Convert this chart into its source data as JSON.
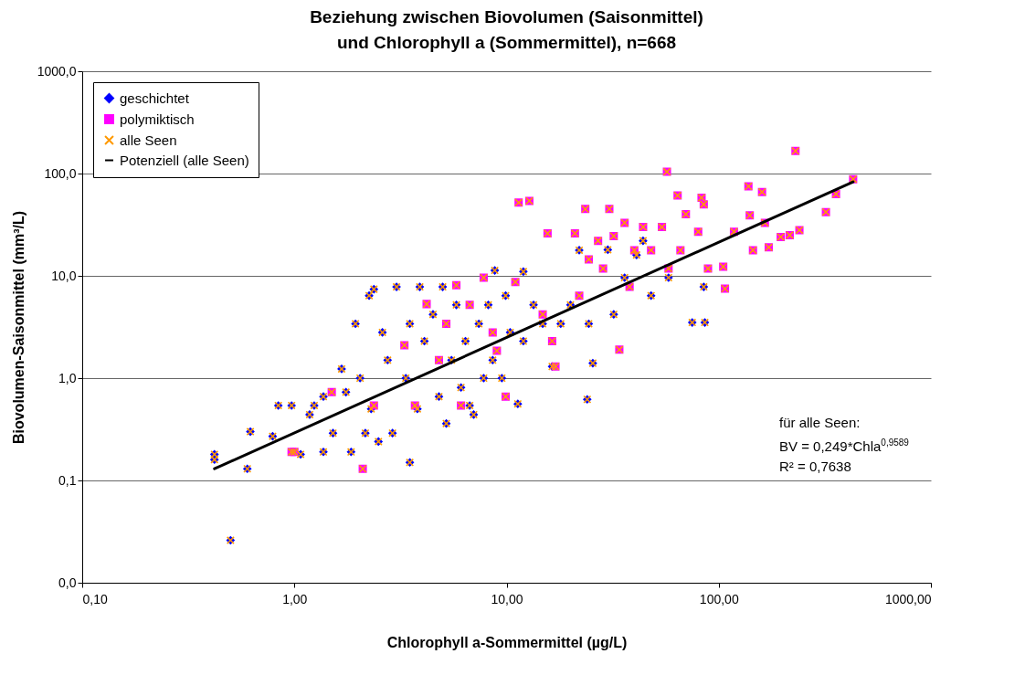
{
  "chart_data": {
    "type": "scatter",
    "title": "Beziehung zwischen Biovolumen (Saisonmittel)\nund Chlorophyll a (Sommermittel), n=668",
    "xlabel": "Chlorophyll a-Sommermittel (µg/L)",
    "ylabel": "Biovolumen-Saisonmittel (mm³/L)",
    "log": "xy",
    "grid": "y",
    "legend": "top left",
    "xlim": [
      0.1,
      1000
    ],
    "ylim": [
      0.01,
      1000
    ],
    "xticks": [
      {
        "value": 0.1,
        "label": "0,10"
      },
      {
        "value": 1,
        "label": "1,00"
      },
      {
        "value": 10,
        "label": "10,00"
      },
      {
        "value": 100,
        "label": "100,00"
      },
      {
        "value": 1000,
        "label": "1000,00"
      }
    ],
    "yticks": [
      {
        "value": 0.01,
        "label": "0,0"
      },
      {
        "value": 0.1,
        "label": "0,1"
      },
      {
        "value": 1,
        "label": "1,0"
      },
      {
        "value": 10,
        "label": "10,0"
      },
      {
        "value": 100,
        "label": "100,0"
      },
      {
        "value": 1000,
        "label": "1000,0"
      }
    ],
    "annotations": [
      "für alle Seen:",
      "BV = 0,249*Chla$^{0,9589}$",
      "R² = 0,7638"
    ],
    "series": [
      {
        "name": "geschichtet",
        "color": "#0000ff",
        "marker": "diamond",
        "x": [
          0.42,
          0.42,
          0.5,
          0.6,
          0.62,
          0.79,
          0.84,
          0.97,
          1.07,
          1.18,
          1.24,
          1.37,
          1.37,
          1.52,
          1.67,
          1.75,
          1.85,
          1.94,
          2.04,
          2.16,
          2.25,
          2.37,
          2.3,
          2.49,
          2.6,
          2.75,
          2.9,
          3.5,
          3.03,
          3.35,
          3.5,
          3.8,
          3.9,
          4.1,
          4.5,
          4.8,
          5.0,
          5.2,
          5.5,
          5.8,
          6.1,
          6.4,
          6.7,
          7.0,
          7.4,
          7.8,
          8.2,
          8.6,
          8.8,
          9.5,
          9.9,
          10.4,
          11.3,
          12,
          12,
          13.4,
          14.8,
          16.4,
          18,
          20,
          22,
          24.4,
          24,
          25.5,
          30,
          32,
          36,
          41,
          44,
          48,
          58,
          75,
          86,
          85
        ],
        "values": [
          0.18,
          0.16,
          0.026,
          0.13,
          0.3,
          0.27,
          0.54,
          0.54,
          0.18,
          0.44,
          0.54,
          0.19,
          0.66,
          0.29,
          1.23,
          0.73,
          0.19,
          3.4,
          1.0,
          0.29,
          6.4,
          7.4,
          0.5,
          0.24,
          2.8,
          1.5,
          0.29,
          0.15,
          7.8,
          1.0,
          3.4,
          0.5,
          7.8,
          2.3,
          4.2,
          0.66,
          7.8,
          0.36,
          1.5,
          5.2,
          0.81,
          2.3,
          0.54,
          0.44,
          3.4,
          1.0,
          5.2,
          1.5,
          11.3,
          1.0,
          6.4,
          2.8,
          0.56,
          11,
          2.3,
          5.2,
          3.4,
          1.3,
          3.4,
          5.2,
          17.8,
          3.4,
          0.62,
          1.4,
          18,
          4.2,
          9.6,
          16,
          22,
          6.4,
          9.6,
          3.5,
          3.5,
          7.8
        ]
      },
      {
        "name": "polymiktisch",
        "color": "#ff00ff",
        "marker": "square",
        "x": [
          0.97,
          1.0,
          2.1,
          4.2,
          3.3,
          1.5,
          2.37,
          3.7,
          4.8,
          5.2,
          5.8,
          6.1,
          6.7,
          7.8,
          8.6,
          9,
          9.9,
          11,
          11.4,
          12.8,
          14.8,
          15.6,
          16.4,
          17,
          21,
          22,
          23.5,
          24.4,
          27,
          28.5,
          30.5,
          32,
          34,
          36,
          38,
          40,
          44,
          48,
          54,
          57,
          58,
          64,
          66,
          70,
          80,
          83,
          85,
          89,
          105,
          107,
          118,
          138,
          140,
          145,
          160,
          165,
          172,
          196,
          216,
          230,
          240,
          320,
          357,
          430
        ],
        "values": [
          0.19,
          0.19,
          0.13,
          5.3,
          2.1,
          0.73,
          0.54,
          0.54,
          1.5,
          3.4,
          8.1,
          0.54,
          5.2,
          9.6,
          2.8,
          1.85,
          0.66,
          8.7,
          52,
          54,
          4.2,
          26,
          2.3,
          1.3,
          26,
          6.4,
          45,
          14.5,
          22,
          11.8,
          45,
          24.5,
          1.9,
          33,
          7.8,
          17.8,
          30,
          17.8,
          30,
          104,
          11.8,
          61,
          17.8,
          40,
          27,
          58,
          50,
          11.8,
          12.3,
          7.5,
          27,
          75,
          39,
          17.8,
          66,
          33,
          19,
          24,
          25,
          166,
          28,
          42,
          63,
          88
        ]
      },
      {
        "name": "alle Seen",
        "color": "#ff9900",
        "marker": "cross",
        "x": [
          0.42,
          0.42,
          0.5,
          0.6,
          0.62,
          0.79,
          0.84,
          0.97,
          1.07,
          1.18,
          1.24,
          1.37,
          1.37,
          1.52,
          1.67,
          1.75,
          1.85,
          1.94,
          2.04,
          2.16,
          2.25,
          2.37,
          2.3,
          2.49,
          2.6,
          2.75,
          2.9,
          3.5,
          3.03,
          3.35,
          3.5,
          3.8,
          3.9,
          4.1,
          4.5,
          4.8,
          5.0,
          5.2,
          5.5,
          5.8,
          6.1,
          6.4,
          6.7,
          7.0,
          7.4,
          7.8,
          8.2,
          8.6,
          8.8,
          9.5,
          9.9,
          10.4,
          11.3,
          12,
          12,
          13.4,
          14.8,
          16.4,
          18,
          20,
          22,
          24.4,
          24,
          25.5,
          30,
          32,
          36,
          41,
          44,
          48,
          58,
          75,
          86,
          85,
          0.97,
          1.0,
          2.1,
          4.2,
          3.3,
          1.5,
          2.37,
          3.7,
          4.8,
          5.2,
          5.8,
          6.1,
          6.7,
          7.8,
          8.6,
          9,
          9.9,
          11,
          11.4,
          12.8,
          14.8,
          15.6,
          16.4,
          17,
          21,
          22,
          23.5,
          24.4,
          27,
          28.5,
          30.5,
          32,
          34,
          36,
          38,
          40,
          44,
          48,
          54,
          57,
          58,
          64,
          66,
          70,
          80,
          83,
          85,
          89,
          105,
          107,
          118,
          138,
          140,
          145,
          160,
          165,
          172,
          196,
          216,
          230,
          240,
          320,
          357,
          430
        ],
        "values": [
          0.18,
          0.16,
          0.026,
          0.13,
          0.3,
          0.27,
          0.54,
          0.54,
          0.18,
          0.44,
          0.54,
          0.19,
          0.66,
          0.29,
          1.23,
          0.73,
          0.19,
          3.4,
          1.0,
          0.29,
          6.4,
          7.4,
          0.5,
          0.24,
          2.8,
          1.5,
          0.29,
          0.15,
          7.8,
          1.0,
          3.4,
          0.5,
          7.8,
          2.3,
          4.2,
          0.66,
          7.8,
          0.36,
          1.5,
          5.2,
          0.81,
          2.3,
          0.54,
          0.44,
          3.4,
          1.0,
          5.2,
          1.5,
          11.3,
          1.0,
          6.4,
          2.8,
          0.56,
          11,
          2.3,
          5.2,
          3.4,
          1.3,
          3.4,
          5.2,
          17.8,
          3.4,
          0.62,
          1.4,
          18,
          4.2,
          9.6,
          16,
          22,
          6.4,
          9.6,
          3.5,
          3.5,
          7.8,
          0.19,
          0.19,
          0.13,
          5.3,
          2.1,
          0.73,
          0.54,
          0.54,
          1.5,
          3.4,
          8.1,
          0.54,
          5.2,
          9.6,
          2.8,
          1.85,
          0.66,
          8.7,
          52,
          54,
          4.2,
          26,
          2.3,
          1.3,
          26,
          6.4,
          45,
          14.5,
          22,
          11.8,
          45,
          24.5,
          1.9,
          33,
          7.8,
          17.8,
          30,
          17.8,
          30,
          104,
          11.8,
          61,
          17.8,
          40,
          27,
          58,
          50,
          11.8,
          12.3,
          7.5,
          27,
          75,
          39,
          17.8,
          66,
          33,
          19,
          24,
          25,
          166,
          28,
          42,
          63,
          88
        ]
      },
      {
        "name": "Potenziell (alle Seen)",
        "type": "line",
        "color": "#000000",
        "x": [
          0.42,
          430
        ],
        "values": [
          0.13,
          83
        ]
      }
    ]
  }
}
